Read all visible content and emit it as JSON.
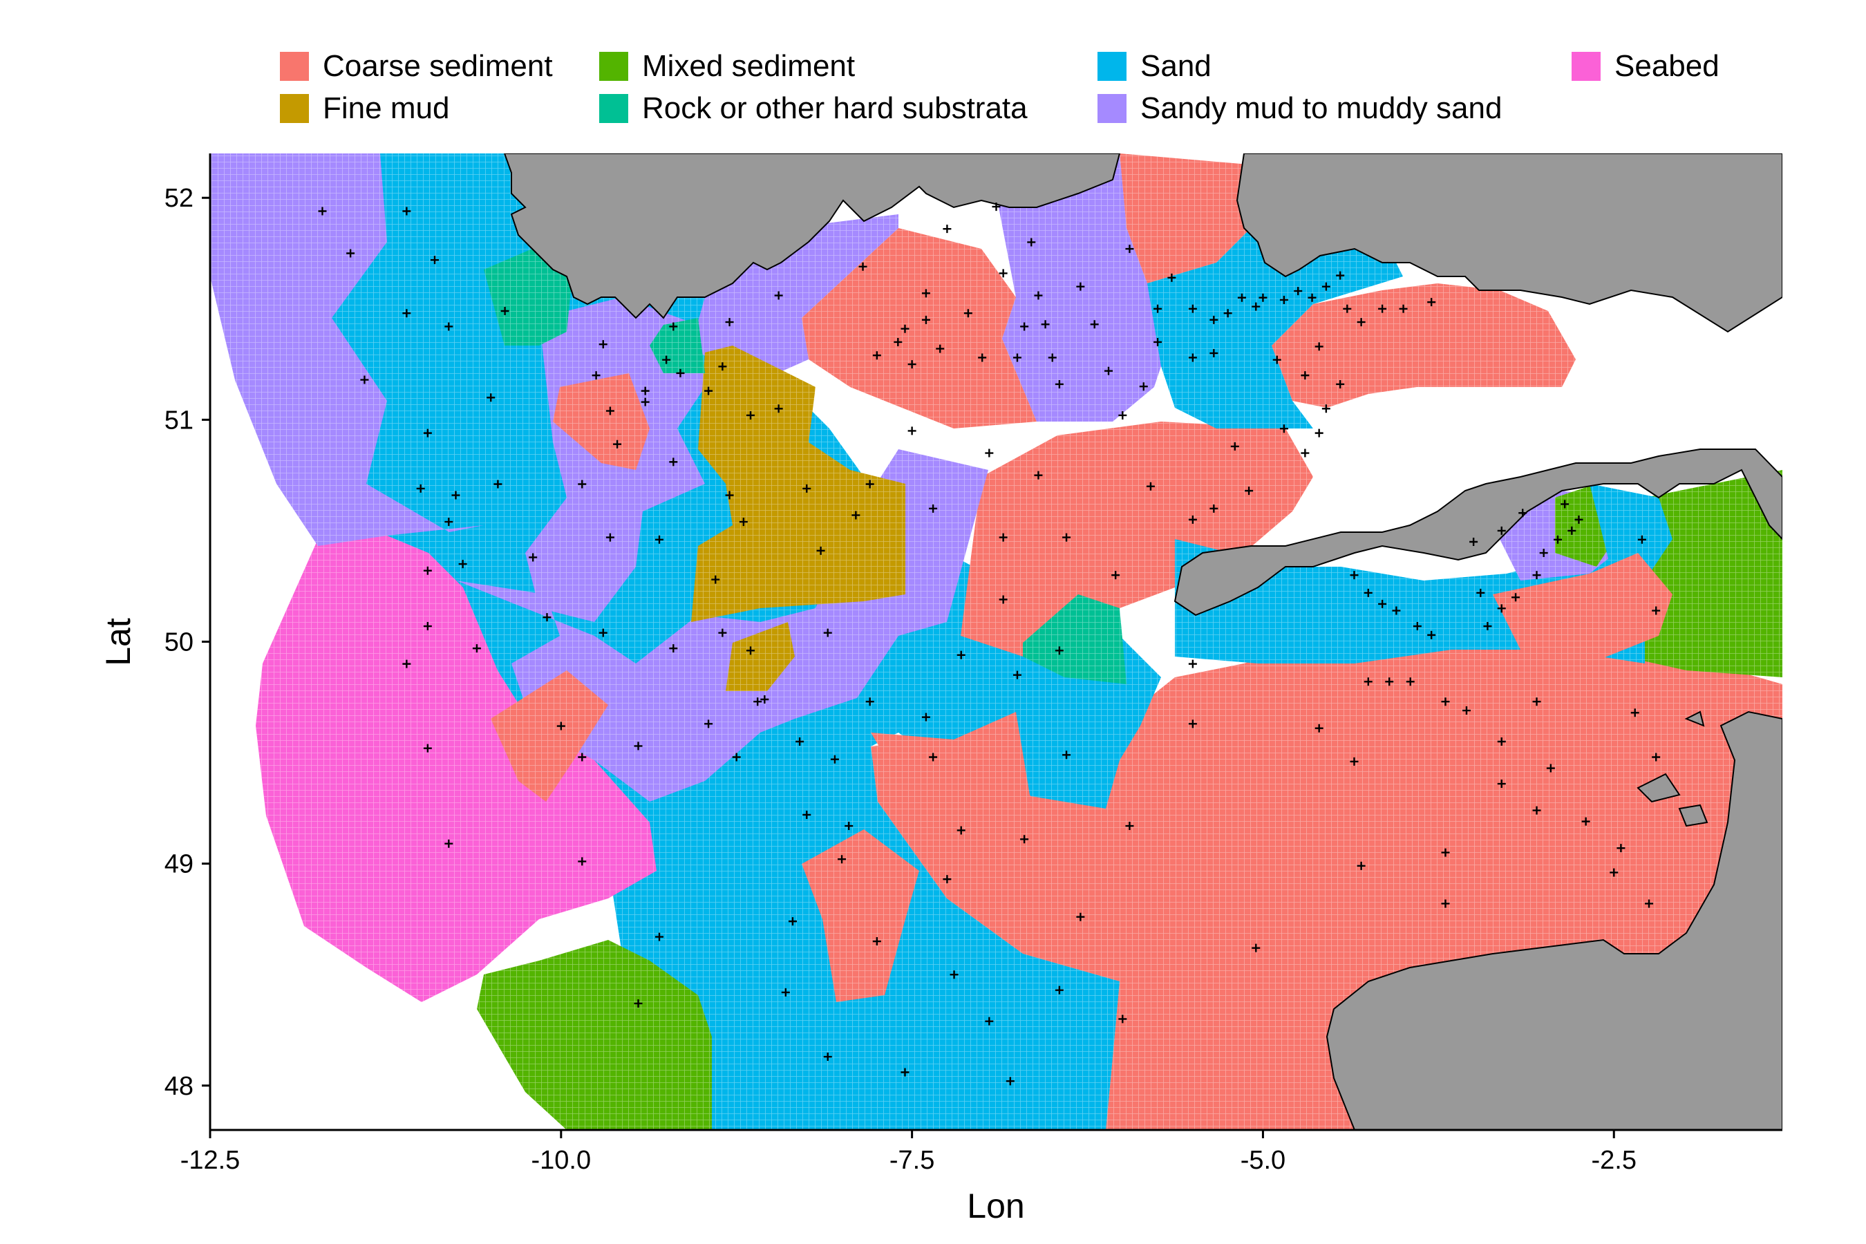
{
  "legend": {
    "items": [
      {
        "label": "Coarse sediment",
        "color": "#F8766D"
      },
      {
        "label": "Fine mud",
        "color": "#C49A00"
      },
      {
        "label": "Mixed sediment",
        "color": "#53B400"
      },
      {
        "label": "Rock or other hard substrata",
        "color": "#00C094"
      },
      {
        "label": "Sand",
        "color": "#00B6EB"
      },
      {
        "label": "Sandy mud to muddy sand",
        "color": "#A58AFF"
      },
      {
        "label": "Seabed",
        "color": "#FB61D7"
      }
    ]
  },
  "axes": {
    "x_title": "Lon",
    "y_title": "Lat",
    "x_ticks": [
      "-12.5",
      "-10.0",
      "-7.5",
      "-5.0",
      "-2.5"
    ],
    "y_ticks": [
      "48",
      "49",
      "50",
      "51",
      "52"
    ],
    "x_range": [
      -12.5,
      -1.3
    ],
    "y_range": [
      47.8,
      52.2
    ]
  },
  "colors": {
    "land": "#999999",
    "background": "#ffffff"
  },
  "sample_points": [
    [
      -11.7,
      51.94
    ],
    [
      -11.1,
      51.94
    ],
    [
      -11.5,
      51.75
    ],
    [
      -10.9,
      51.72
    ],
    [
      -11.1,
      51.48
    ],
    [
      -10.4,
      51.49
    ],
    [
      -10.8,
      51.42
    ],
    [
      -11.4,
      51.18
    ],
    [
      -10.5,
      51.1
    ],
    [
      -10.95,
      50.94
    ],
    [
      -10.75,
      50.66
    ],
    [
      -10.45,
      50.71
    ],
    [
      -11.0,
      50.69
    ],
    [
      -10.8,
      50.54
    ],
    [
      -10.2,
      50.38
    ],
    [
      -10.7,
      50.35
    ],
    [
      -10.95,
      50.32
    ],
    [
      -10.1,
      50.11
    ],
    [
      -10.95,
      50.07
    ],
    [
      -10.6,
      49.97
    ],
    [
      -11.1,
      49.9
    ],
    [
      -10.0,
      49.62
    ],
    [
      -10.95,
      49.52
    ],
    [
      -10.8,
      49.09
    ],
    [
      -9.85,
      49.01
    ],
    [
      -9.7,
      51.34
    ],
    [
      -9.75,
      51.2
    ],
    [
      -9.4,
      51.13
    ],
    [
      -9.65,
      51.04
    ],
    [
      -9.4,
      51.08
    ],
    [
      -9.2,
      51.42
    ],
    [
      -9.25,
      51.27
    ],
    [
      -9.15,
      51.21
    ],
    [
      -9.2,
      50.81
    ],
    [
      -9.6,
      50.89
    ],
    [
      -9.85,
      50.71
    ],
    [
      -9.65,
      50.47
    ],
    [
      -9.3,
      50.46
    ],
    [
      -9.7,
      50.04
    ],
    [
      -9.2,
      49.97
    ],
    [
      -9.45,
      49.53
    ],
    [
      -9.85,
      49.48
    ],
    [
      -9.45,
      48.37
    ],
    [
      -9.3,
      48.67
    ],
    [
      -8.8,
      51.44
    ],
    [
      -8.85,
      51.24
    ],
    [
      -8.65,
      51.02
    ],
    [
      -8.95,
      51.13
    ],
    [
      -8.8,
      50.66
    ],
    [
      -8.7,
      50.54
    ],
    [
      -8.9,
      50.28
    ],
    [
      -8.85,
      50.04
    ],
    [
      -8.65,
      49.96
    ],
    [
      -8.55,
      49.74
    ],
    [
      -8.95,
      49.63
    ],
    [
      -8.75,
      49.48
    ],
    [
      -8.4,
      48.42
    ],
    [
      -8.35,
      48.74
    ],
    [
      -8.6,
      49.73
    ],
    [
      -8.45,
      51.56
    ],
    [
      -8.45,
      51.05
    ],
    [
      -8.25,
      50.69
    ],
    [
      -8.15,
      50.41
    ],
    [
      -7.9,
      50.57
    ],
    [
      -8.1,
      50.04
    ],
    [
      -8.3,
      49.55
    ],
    [
      -8.25,
      49.22
    ],
    [
      -7.8,
      49.73
    ],
    [
      -8.05,
      49.47
    ],
    [
      -7.95,
      49.17
    ],
    [
      -8.0,
      49.02
    ],
    [
      -7.75,
      48.65
    ],
    [
      -8.1,
      48.13
    ],
    [
      -7.85,
      51.69
    ],
    [
      -7.75,
      51.29
    ],
    [
      -7.6,
      51.35
    ],
    [
      -7.5,
      51.25
    ],
    [
      -7.3,
      51.32
    ],
    [
      -7.4,
      51.45
    ],
    [
      -7.55,
      51.41
    ],
    [
      -7.8,
      50.71
    ],
    [
      -7.5,
      50.95
    ],
    [
      -7.4,
      51.57
    ],
    [
      -7.35,
      50.6
    ],
    [
      -7.15,
      49.94
    ],
    [
      -7.4,
      49.66
    ],
    [
      -7.35,
      49.48
    ],
    [
      -7.15,
      49.15
    ],
    [
      -7.25,
      48.93
    ],
    [
      -7.2,
      48.5
    ],
    [
      -7.55,
      48.06
    ],
    [
      -7.25,
      51.86
    ],
    [
      -7.1,
      51.48
    ],
    [
      -6.85,
      51.66
    ],
    [
      -7.0,
      51.28
    ],
    [
      -6.9,
      51.96
    ],
    [
      -6.7,
      51.42
    ],
    [
      -6.55,
      51.43
    ],
    [
      -6.95,
      50.85
    ],
    [
      -6.85,
      50.47
    ],
    [
      -6.85,
      50.19
    ],
    [
      -6.6,
      50.75
    ],
    [
      -6.75,
      49.85
    ],
    [
      -6.45,
      49.96
    ],
    [
      -6.4,
      49.49
    ],
    [
      -6.7,
      49.11
    ],
    [
      -6.45,
      48.43
    ],
    [
      -6.95,
      48.29
    ],
    [
      -6.8,
      48.02
    ],
    [
      -6.65,
      51.8
    ],
    [
      -6.6,
      51.56
    ],
    [
      -6.75,
      51.28
    ],
    [
      -6.5,
      51.28
    ],
    [
      -6.45,
      51.16
    ],
    [
      -6.3,
      51.6
    ],
    [
      -6.2,
      51.43
    ],
    [
      -6.1,
      51.22
    ],
    [
      -6.0,
      51.02
    ],
    [
      -6.4,
      50.47
    ],
    [
      -6.05,
      50.3
    ],
    [
      -6.3,
      48.76
    ],
    [
      -5.95,
      49.17
    ],
    [
      -6.0,
      48.3
    ],
    [
      -5.95,
      51.77
    ],
    [
      -5.65,
      51.64
    ],
    [
      -5.75,
      51.5
    ],
    [
      -5.5,
      51.5
    ],
    [
      -5.75,
      51.35
    ],
    [
      -5.85,
      51.15
    ],
    [
      -5.5,
      51.28
    ],
    [
      -5.35,
      51.45
    ],
    [
      -5.25,
      51.48
    ],
    [
      -5.35,
      51.3
    ],
    [
      -5.15,
      51.55
    ],
    [
      -5.05,
      51.51
    ],
    [
      -5.5,
      50.55
    ],
    [
      -5.35,
      50.6
    ],
    [
      -5.2,
      50.88
    ],
    [
      -5.1,
      50.68
    ],
    [
      -5.8,
      50.7
    ],
    [
      -5.5,
      49.63
    ],
    [
      -5.5,
      49.9
    ],
    [
      -5.05,
      48.62
    ],
    [
      -5.0,
      51.55
    ],
    [
      -4.85,
      51.54
    ],
    [
      -4.75,
      51.58
    ],
    [
      -4.65,
      51.55
    ],
    [
      -4.55,
      51.6
    ],
    [
      -4.45,
      51.65
    ],
    [
      -4.4,
      51.5
    ],
    [
      -4.9,
      51.27
    ],
    [
      -4.7,
      51.2
    ],
    [
      -4.6,
      51.33
    ],
    [
      -4.85,
      50.96
    ],
    [
      -4.6,
      50.94
    ],
    [
      -4.7,
      50.85
    ],
    [
      -4.55,
      51.05
    ],
    [
      -4.45,
      51.16
    ],
    [
      -4.3,
      51.44
    ],
    [
      -4.15,
      51.5
    ],
    [
      -4.0,
      51.5
    ],
    [
      -3.8,
      51.53
    ],
    [
      -4.35,
      50.3
    ],
    [
      -4.25,
      50.22
    ],
    [
      -4.15,
      50.17
    ],
    [
      -4.05,
      50.14
    ],
    [
      -3.9,
      50.07
    ],
    [
      -3.8,
      50.03
    ],
    [
      -4.6,
      49.61
    ],
    [
      -4.35,
      49.46
    ],
    [
      -4.25,
      49.82
    ],
    [
      -4.1,
      49.82
    ],
    [
      -3.95,
      49.82
    ],
    [
      -3.7,
      49.73
    ],
    [
      -3.55,
      49.69
    ],
    [
      -3.45,
      50.22
    ],
    [
      -3.4,
      50.07
    ],
    [
      -3.3,
      50.15
    ],
    [
      -3.2,
      50.2
    ],
    [
      -3.05,
      50.3
    ],
    [
      -3.0,
      50.4
    ],
    [
      -2.9,
      50.46
    ],
    [
      -2.8,
      50.5
    ],
    [
      -2.75,
      50.55
    ],
    [
      -3.5,
      50.45
    ],
    [
      -3.3,
      50.5
    ],
    [
      -3.15,
      50.58
    ],
    [
      -2.85,
      50.62
    ],
    [
      -3.3,
      49.55
    ],
    [
      -3.3,
      49.36
    ],
    [
      -3.05,
      49.73
    ],
    [
      -3.05,
      49.24
    ],
    [
      -2.95,
      49.43
    ],
    [
      -2.7,
      49.19
    ],
    [
      -2.5,
      48.96
    ],
    [
      -2.35,
      49.68
    ],
    [
      -2.2,
      49.48
    ],
    [
      -2.3,
      50.46
    ],
    [
      -2.2,
      50.14
    ],
    [
      -2.45,
      49.07
    ],
    [
      -2.25,
      48.82
    ],
    [
      -3.7,
      48.82
    ],
    [
      -4.3,
      48.99
    ],
    [
      -3.7,
      49.05
    ]
  ]
}
